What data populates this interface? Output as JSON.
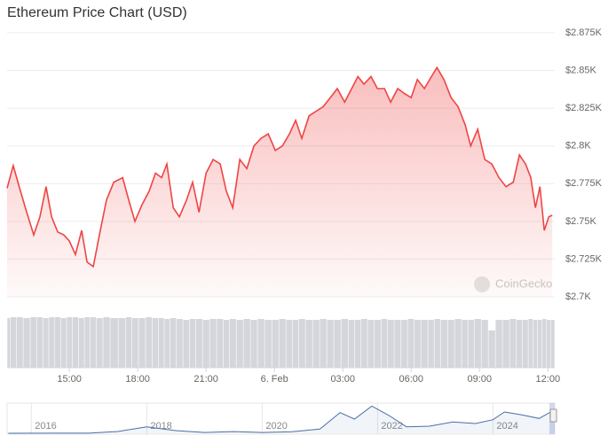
{
  "chart_data": {
    "type": "line",
    "title": "Ethereum Price Chart (USD)",
    "watermark": "CoinGecko",
    "x": [
      12.27,
      12.54,
      12.82,
      13.13,
      13.44,
      13.71,
      13.98,
      14.22,
      14.49,
      14.76,
      15.0,
      15.27,
      15.54,
      15.78,
      16.05,
      16.32,
      16.63,
      16.95,
      17.34,
      17.61,
      17.88,
      18.19,
      18.5,
      18.78,
      19.05,
      19.28,
      19.56,
      19.83,
      20.14,
      20.41,
      20.69,
      21.0,
      21.31,
      21.62,
      21.89,
      22.17,
      22.48,
      22.79,
      23.1,
      23.41,
      23.73,
      24.04,
      24.35,
      24.66,
      24.93,
      25.2,
      25.52,
      25.83,
      26.14,
      26.45,
      26.76,
      27.08,
      27.39,
      27.66,
      27.93,
      28.24,
      28.52,
      28.83,
      29.1,
      29.41,
      29.68,
      30.0,
      30.27,
      30.58,
      30.89,
      31.13,
      31.44,
      31.75,
      32.06,
      32.37,
      32.61,
      32.92,
      33.23,
      33.54,
      33.85,
      34.16,
      34.48,
      34.75,
      35.02,
      35.25,
      35.45,
      35.65,
      35.84,
      36.04,
      36.19
    ],
    "series": [
      {
        "name": "Price",
        "color": "#ef4444",
        "values": [
          2772,
          2787,
          2772,
          2756,
          2741,
          2753,
          2773,
          2753,
          2743,
          2741,
          2737,
          2728,
          2744,
          2723,
          2720,
          2741,
          2764,
          2776,
          2779,
          2764,
          2750,
          2761,
          2770,
          2782,
          2779,
          2788,
          2759,
          2753,
          2764,
          2776,
          2756,
          2782,
          2791,
          2788,
          2770,
          2759,
          2791,
          2785,
          2800,
          2805,
          2808,
          2797,
          2800,
          2808,
          2817,
          2805,
          2820,
          2823,
          2826,
          2832,
          2838,
          2829,
          2838,
          2846,
          2841,
          2846,
          2838,
          2838,
          2829,
          2838,
          2835,
          2832,
          2844,
          2838,
          2846,
          2852,
          2844,
          2832,
          2826,
          2814,
          2800,
          2811,
          2791,
          2788,
          2779,
          2773,
          2776,
          2794,
          2788,
          2779,
          2759,
          2773,
          2744,
          2753,
          2754
        ]
      }
    ],
    "volume": {
      "color": "#d4d6dc",
      "ylim": [
        0,
        60
      ],
      "values": [
        56,
        57,
        57,
        56,
        57,
        57,
        56,
        57,
        57,
        56,
        57,
        57,
        56,
        57,
        57,
        56,
        57,
        56,
        56,
        57,
        56,
        56,
        57,
        56,
        56,
        55,
        56,
        55,
        54,
        55,
        55,
        54,
        55,
        55,
        54,
        55,
        54,
        55,
        54,
        55,
        54,
        54,
        55,
        54,
        54,
        55,
        54,
        54,
        55,
        54,
        54,
        55,
        54,
        54,
        55,
        54,
        54,
        55,
        54,
        54,
        54,
        55,
        54,
        54,
        54,
        55,
        54,
        54,
        55,
        54,
        54,
        55,
        54,
        42,
        54,
        54,
        55,
        54,
        54,
        55,
        54,
        54,
        55,
        54,
        54
      ]
    },
    "xlim": [
      12.27,
      36.3
    ],
    "xticks": [
      {
        "value": 15,
        "label": "15:00"
      },
      {
        "value": 18,
        "label": "18:00"
      },
      {
        "value": 21,
        "label": "21:00"
      },
      {
        "value": 24,
        "label": "6. Feb"
      },
      {
        "value": 27,
        "label": "03:00"
      },
      {
        "value": 30,
        "label": "06:00"
      },
      {
        "value": 33,
        "label": "09:00"
      },
      {
        "value": 36,
        "label": "12:00"
      }
    ],
    "ylim": [
      2700,
      2875
    ],
    "yticks": [
      {
        "value": 2875,
        "label": "$2.875K"
      },
      {
        "value": 2850,
        "label": "$2.85K"
      },
      {
        "value": 2825,
        "label": "$2.825K"
      },
      {
        "value": 2800,
        "label": "$2.8K"
      },
      {
        "value": 2775,
        "label": "$2.775K"
      },
      {
        "value": 2750,
        "label": "$2.75K"
      },
      {
        "value": 2725,
        "label": "$2.725K"
      },
      {
        "value": 2700,
        "label": "$2.7K"
      }
    ],
    "grid": true,
    "navigator": {
      "color": "#4a6fa5",
      "x": [
        2015.6,
        2016.5,
        2017.0,
        2017.5,
        2018.0,
        2018.5,
        2019.0,
        2019.5,
        2020.0,
        2020.5,
        2021.0,
        2021.35,
        2021.6,
        2021.9,
        2022.2,
        2022.5,
        2022.9,
        2023.3,
        2023.7,
        2024.0,
        2024.2,
        2024.5,
        2024.8,
        2025.0,
        2025.07
      ],
      "values": [
        1,
        12,
        10,
        300,
        1100,
        450,
        130,
        290,
        140,
        240,
        700,
        3500,
        2400,
        4600,
        3000,
        1100,
        1200,
        1900,
        1650,
        2300,
        3600,
        3100,
        2500,
        3600,
        2800
      ],
      "xlim": [
        2015.58,
        2025.07
      ],
      "ylim": [
        0,
        4800
      ],
      "xticks": [
        2016,
        2018,
        2020,
        2022,
        2024
      ]
    }
  }
}
